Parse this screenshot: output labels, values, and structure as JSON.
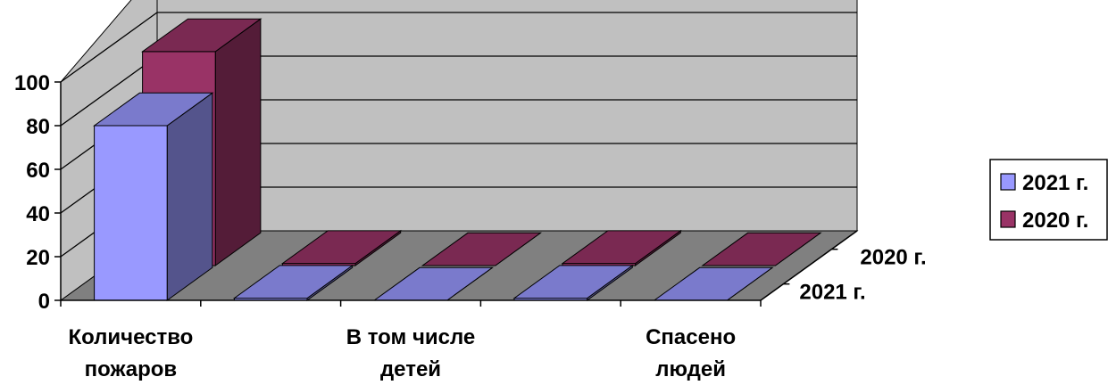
{
  "chart_data": {
    "type": "bar",
    "subtype": "3d-clustered-depth",
    "categories": [
      [
        "Количество",
        "пожаров"
      ],
      [],
      [
        "В том числе",
        "детей"
      ],
      [],
      [
        "Спасено",
        "людей"
      ]
    ],
    "series": [
      {
        "name": "2021 г.",
        "color": "#9999ff",
        "values": [
          80,
          1,
          0,
          1,
          0
        ]
      },
      {
        "name": "2020 г.",
        "color": "#993366",
        "values": [
          98,
          1,
          0,
          1,
          0
        ]
      }
    ],
    "ylim": [
      0,
      100
    ],
    "yticks": [
      0,
      20,
      40,
      60,
      80,
      100
    ],
    "grid": true,
    "legend_position": "right",
    "colors": {
      "back_wall": "#c0c0c0",
      "side_wall": "#c0c0c0",
      "floor": "#808080",
      "gridline": "#000000"
    }
  }
}
